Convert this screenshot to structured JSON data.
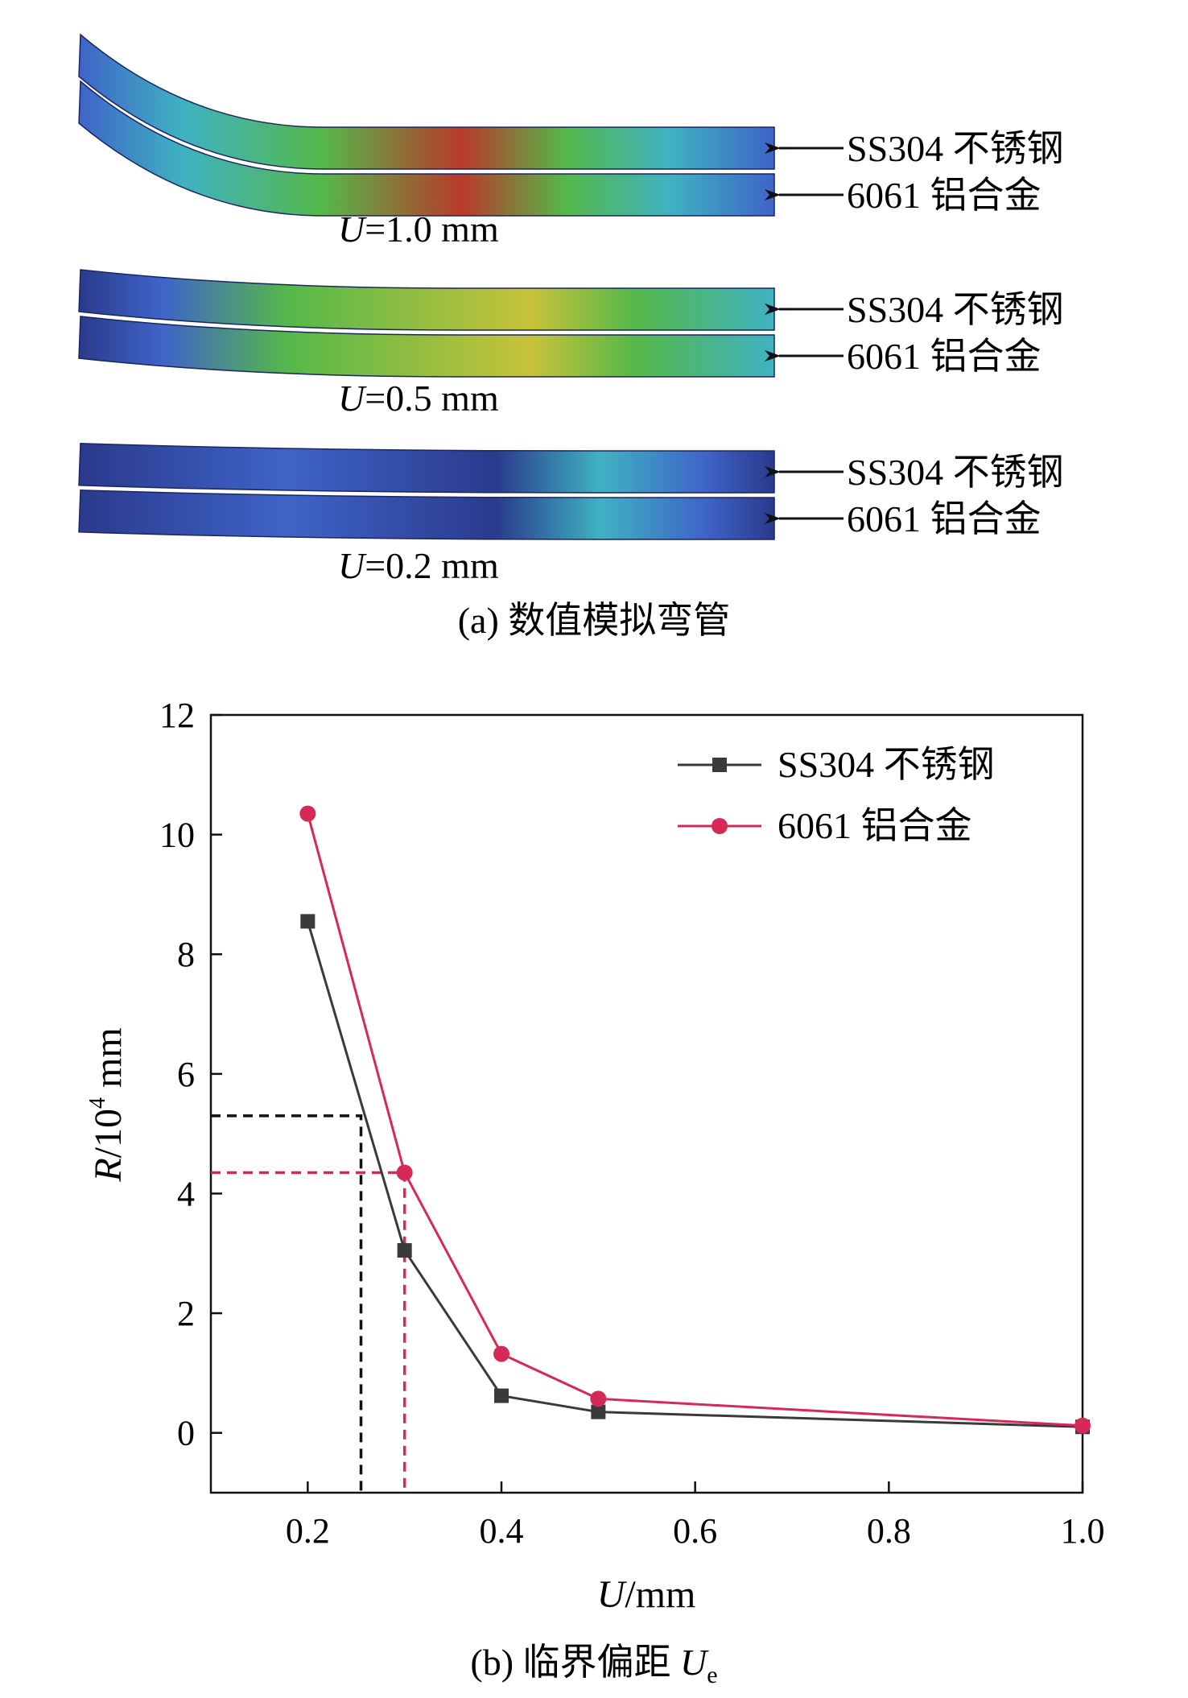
{
  "colors": {
    "steel": "#3a3a3a",
    "aluminum": "#d42a55",
    "axis": "#111111",
    "sim_blue_dark": "#2a3a8c",
    "sim_blue": "#3f64c8",
    "sim_cyan": "#3fb2c2",
    "sim_green": "#55b84a",
    "sim_yellow": "#c8c23a",
    "sim_red": "#b83a2a"
  },
  "panel_a": {
    "caption": "(a) 数值模拟弯管",
    "groups": [
      {
        "label_var": "U",
        "label_text": "=1.0 mm",
        "deflection": 1.0,
        "labels": [
          "SS304 不锈钢",
          "6061 铝合金"
        ]
      },
      {
        "label_var": "U",
        "label_text": "=0.5 mm",
        "deflection": 0.5,
        "labels": [
          "SS304 不锈钢",
          "6061 铝合金"
        ]
      },
      {
        "label_var": "U",
        "label_text": "=0.2 mm",
        "deflection": 0.2,
        "labels": [
          "SS304 不锈钢",
          "6061 铝合金"
        ]
      }
    ]
  },
  "panel_b": {
    "caption_prefix": "(b) 临界偏距 ",
    "caption_var": "U",
    "caption_sub": "e"
  },
  "chart_data": {
    "type": "line",
    "xlabel_var": "U",
    "xlabel_unit": "/mm",
    "ylabel_var": "R",
    "ylabel_base": "/10",
    "ylabel_exp": "4",
    "ylabel_unit": " mm",
    "xlim": [
      0.1,
      1.0
    ],
    "ylim": [
      -1,
      12
    ],
    "xticks": [
      0.2,
      0.4,
      0.6,
      0.8,
      1.0
    ],
    "xtick_labels": [
      "0.2",
      "0.4",
      "0.6",
      "0.8",
      "1.0"
    ],
    "yticks": [
      0,
      2,
      4,
      6,
      8,
      10,
      12
    ],
    "ytick_labels": [
      "0",
      "2",
      "4",
      "6",
      "8",
      "10",
      "12"
    ],
    "grid": false,
    "legend": "top-right",
    "series": [
      {
        "name": "SS304 不锈钢",
        "marker": "square",
        "color_key": "steel",
        "x": [
          0.2,
          0.3,
          0.4,
          0.5,
          1.0
        ],
        "y": [
          8.55,
          3.05,
          0.62,
          0.35,
          0.1
        ]
      },
      {
        "name": "6061 铝合金",
        "marker": "circle",
        "color_key": "aluminum",
        "x": [
          0.2,
          0.3,
          0.4,
          0.5,
          1.0
        ],
        "y": [
          10.35,
          4.35,
          1.32,
          0.57,
          0.12
        ]
      }
    ],
    "critical_lines": [
      {
        "series": "SS304 不锈钢",
        "x": 0.255,
        "y": 5.3,
        "color_key": "axis"
      },
      {
        "series": "6061 铝合金",
        "x": 0.3,
        "y": 4.35,
        "color_key": "aluminum"
      }
    ]
  }
}
